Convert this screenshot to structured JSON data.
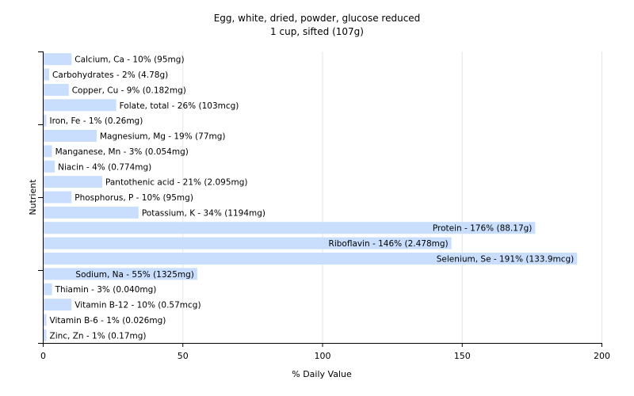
{
  "chart_data": {
    "type": "bar",
    "orientation": "horizontal",
    "title": "Egg, white, dried, powder, glucose reduced",
    "subtitle": "1 cup, sifted (107g)",
    "xlabel": "% Daily Value",
    "ylabel": "Nutrient",
    "xlim": [
      0,
      200
    ],
    "xticks": [
      "0",
      "50",
      "100",
      "150",
      "200"
    ],
    "grid": true,
    "bar_color": "#c8defc",
    "grid_color": "#e6e6e6",
    "categories": [
      "Calcium, Ca",
      "Carbohydrates",
      "Copper, Cu",
      "Folate, total",
      "Iron, Fe",
      "Magnesium, Mg",
      "Manganese, Mn",
      "Niacin",
      "Pantothenic acid",
      "Phosphorus, P",
      "Potassium, K",
      "Protein",
      "Riboflavin",
      "Selenium, Se",
      "Sodium, Na",
      "Thiamin",
      "Vitamin B-12",
      "Vitamin B-6",
      "Zinc, Zn"
    ],
    "values": [
      10,
      2,
      9,
      26,
      1,
      19,
      3,
      4,
      21,
      10,
      34,
      176,
      146,
      191,
      55,
      3,
      10,
      1,
      1
    ],
    "labels": [
      "Calcium, Ca - 10% (95mg)",
      "Carbohydrates - 2% (4.78g)",
      "Copper, Cu - 9% (0.182mg)",
      "Folate, total - 26% (103mcg)",
      "Iron, Fe - 1% (0.26mg)",
      "Magnesium, Mg - 19% (77mg)",
      "Manganese, Mn - 3% (0.054mg)",
      "Niacin - 4% (0.774mg)",
      "Pantothenic acid - 21% (2.095mg)",
      "Phosphorus, P - 10% (95mg)",
      "Potassium, K - 34% (1194mg)",
      "Protein - 176% (88.17g)",
      "Riboflavin - 146% (2.478mg)",
      "Selenium, Se - 191% (133.9mcg)",
      "Sodium, Na - 55% (1325mg)",
      "Thiamin - 3% (0.040mg)",
      "Vitamin B-12 - 10% (0.57mcg)",
      "Vitamin B-6 - 1% (0.026mg)",
      "Zinc, Zn - 1% (0.17mg)"
    ]
  }
}
